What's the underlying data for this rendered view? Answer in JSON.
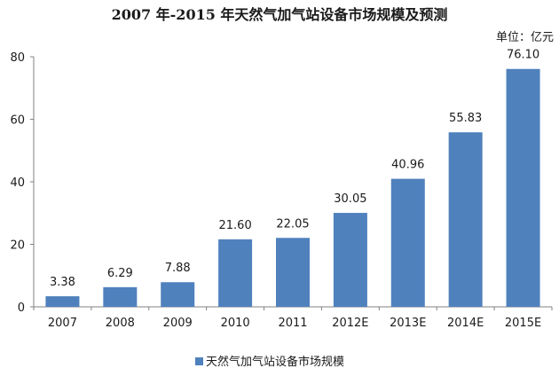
{
  "chart_data": {
    "type": "bar",
    "title": "2007 年-2015 年天然气加气站设备市场规模及预测",
    "unit_label": "单位：亿元",
    "categories": [
      "2007",
      "2008",
      "2009",
      "2010",
      "2011",
      "2012E",
      "2013E",
      "2014E",
      "2015E"
    ],
    "series": [
      {
        "name": "天然气加气站设备市场规模",
        "values": [
          3.38,
          6.29,
          7.88,
          21.6,
          22.05,
          30.05,
          40.96,
          55.83,
          76.1
        ],
        "value_labels": [
          "3.38",
          "6.29",
          "7.88",
          "21.60",
          "22.05",
          "30.05",
          "40.96",
          "55.83",
          "76.10"
        ],
        "color": "#4f81bd"
      }
    ],
    "ylim": [
      0,
      80
    ],
    "yticks": [
      0,
      20,
      40,
      60,
      80
    ],
    "xlabel": "",
    "ylabel": "",
    "grid": false,
    "legend_position": "bottom"
  }
}
